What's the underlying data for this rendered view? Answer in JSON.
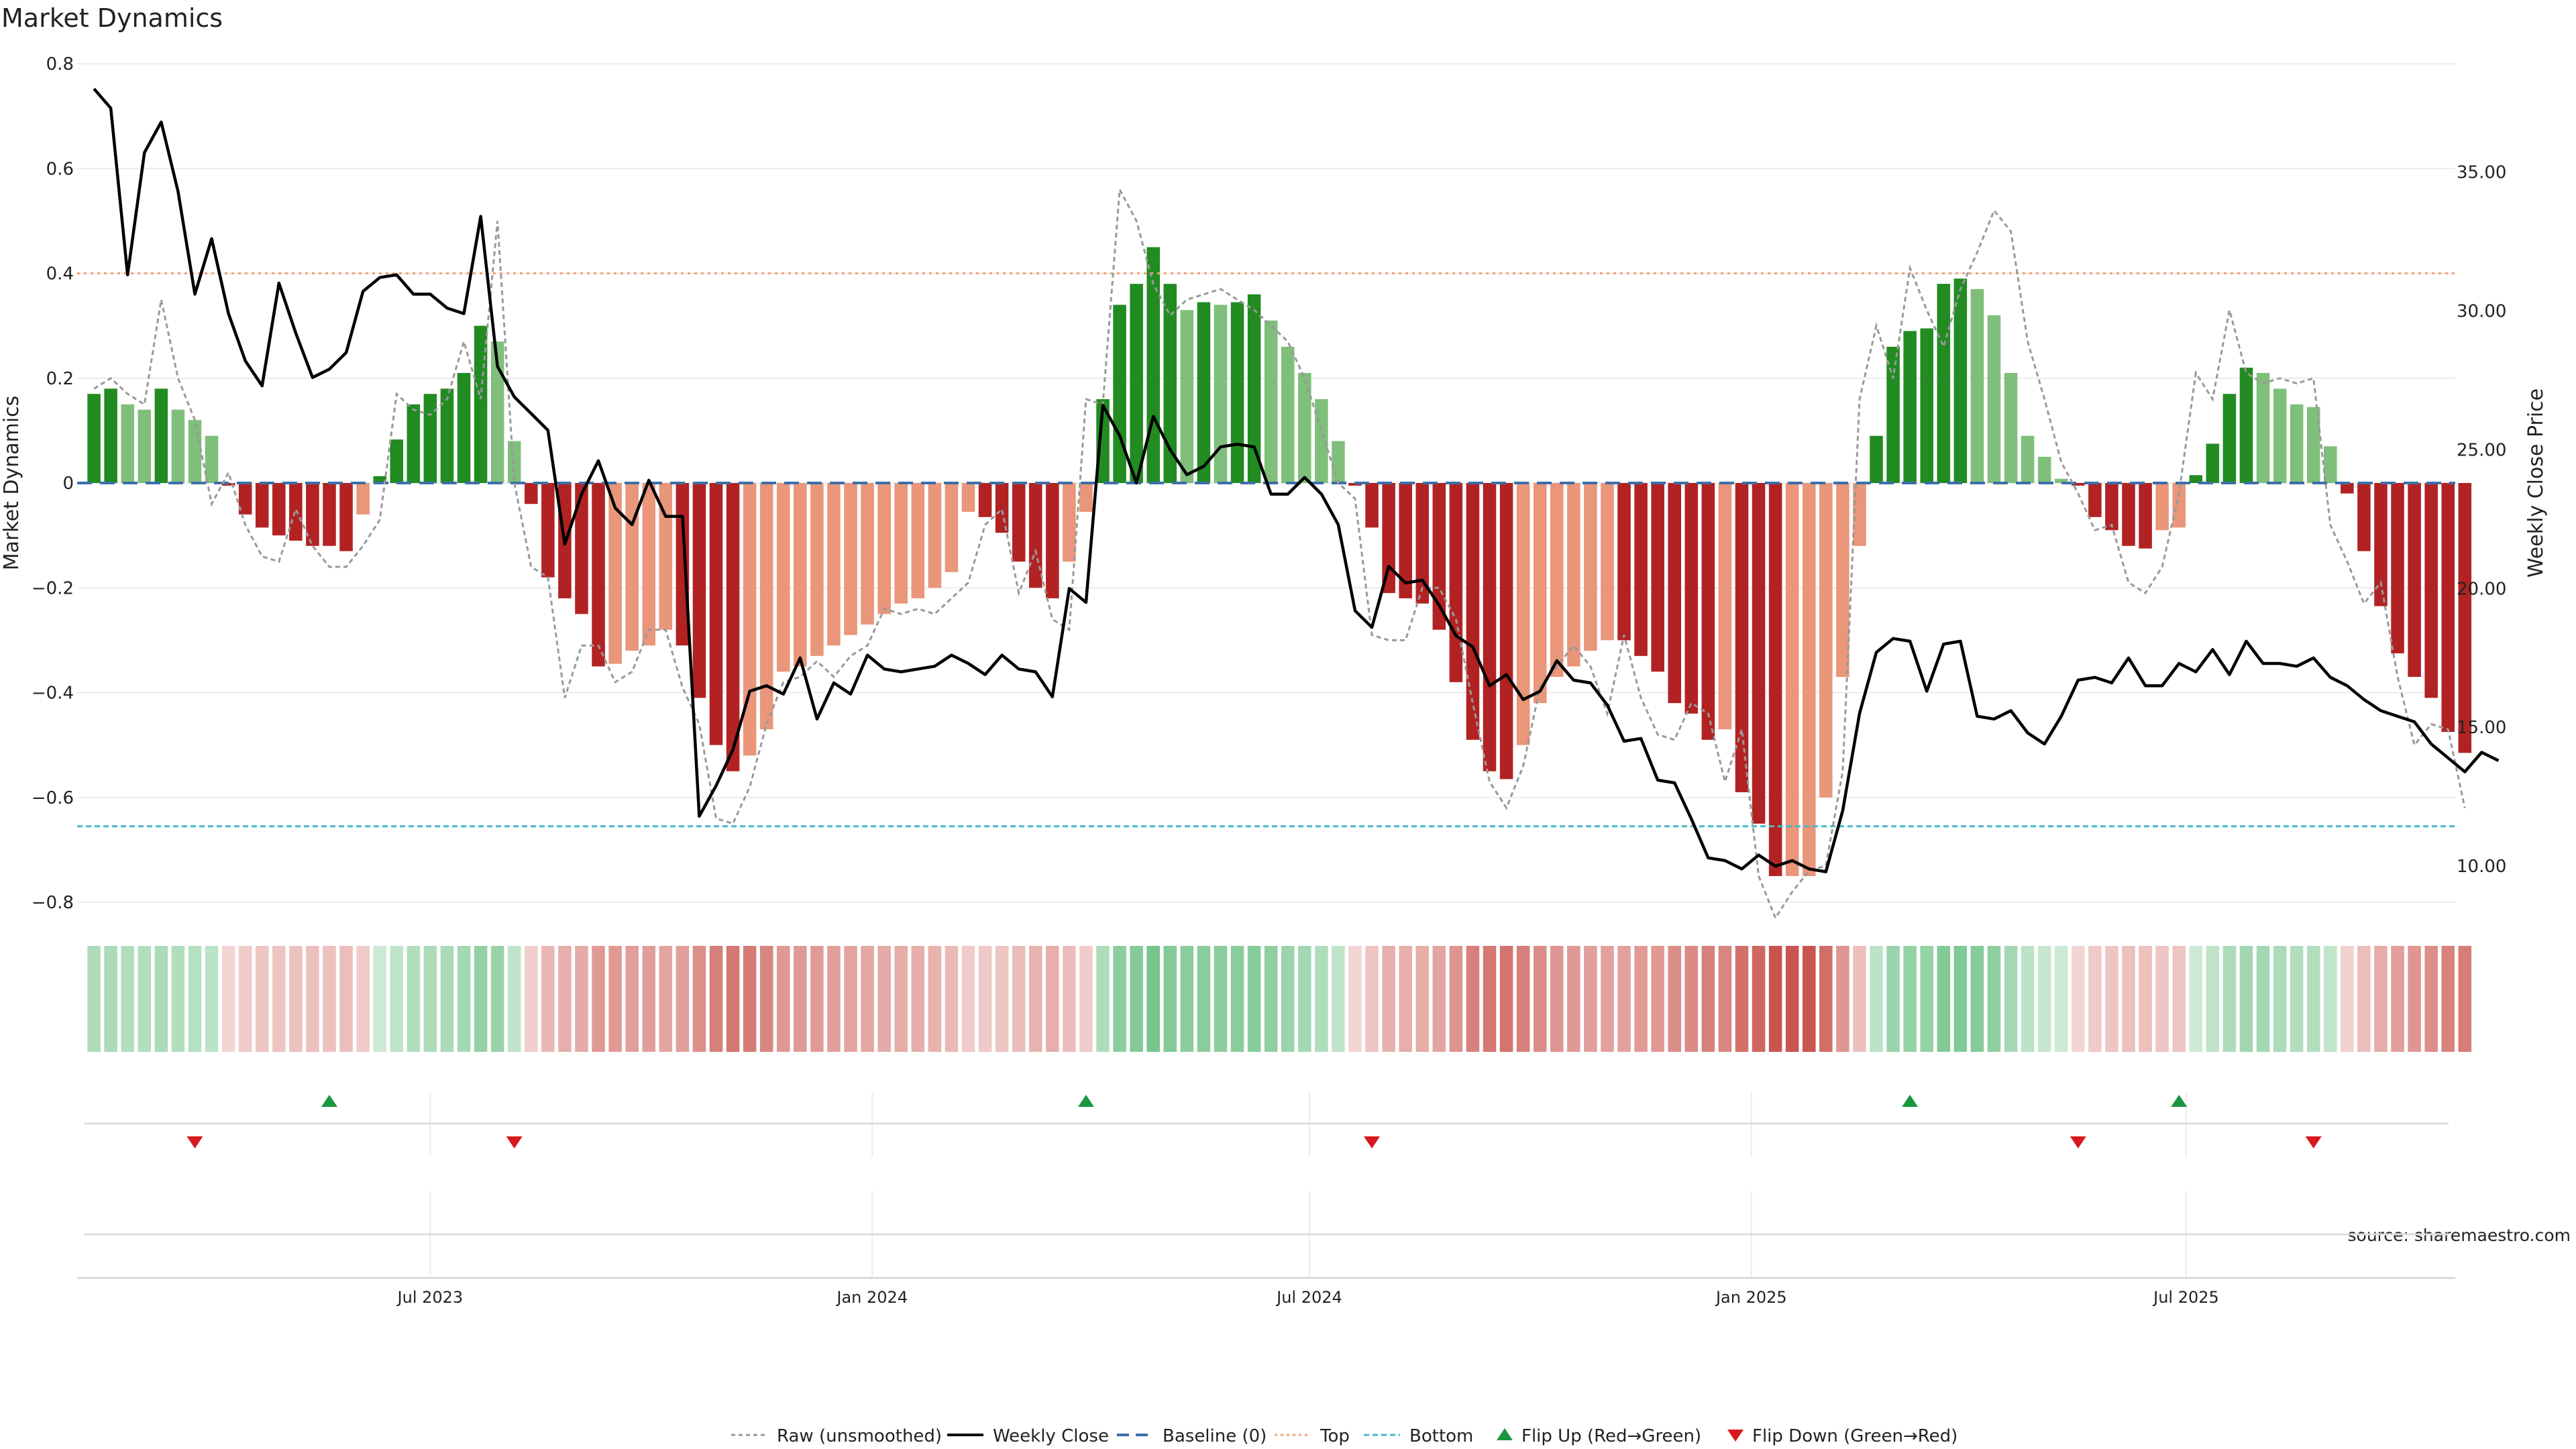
{
  "title": "Market Dynamics",
  "source": "source: sharemaestro.com",
  "chart_data": {
    "type": "bar",
    "left_axis": {
      "label": "Market Dynamics",
      "ylim": [
        -0.8,
        0.8
      ],
      "ticks": [
        0.8,
        0.6,
        0.4,
        0.2,
        0,
        -0.2,
        -0.4,
        -0.6,
        -0.8
      ],
      "tick_labels": [
        "0.8",
        "0.6",
        "0.4",
        "0.2",
        "0",
        "−0.2",
        "−0.4",
        "−0.6",
        "−0.8"
      ]
    },
    "right_axis": {
      "label": "Weekly Close Price",
      "ylim": [
        8.7,
        38.9
      ],
      "ticks": [
        35,
        30,
        25,
        20,
        15,
        10
      ],
      "tick_labels": [
        "35.00",
        "30.00",
        "25.00",
        "20.00",
        "15.00",
        "10.00"
      ]
    },
    "x_axis": {
      "x_start": "2023-02-04",
      "x_end": "2025-10-21",
      "tick_dates": [
        "2023-07-01",
        "2024-01-01",
        "2024-07-01",
        "2025-01-01",
        "2025-07-01"
      ],
      "tick_labels": [
        "Jul 2023",
        "Jan 2024",
        "Jul 2024",
        "Jan 2025",
        "Jul 2025"
      ]
    },
    "grid": true,
    "legend_position": "bottom-center",
    "thresholds": {
      "top": 0.4,
      "bottom": -0.655,
      "baseline": 0
    },
    "colors": {
      "green_strong": "#228b22",
      "green_light": "#7fbf7b",
      "red_strong": "#b22222",
      "red_light": "#e9967a",
      "raw": "#999999",
      "close": "#000000",
      "baseline": "#3d6fa8",
      "top": "#f0a070",
      "bottom": "#47b8cc",
      "flip_up": "#1a9641",
      "flip_down": "#d7191c"
    },
    "week_start": "2023-02-11",
    "bars": [
      0.17,
      0.18,
      0.15,
      0.14,
      0.18,
      0.14,
      0.12,
      0.09,
      -0.005,
      -0.06,
      -0.085,
      -0.1,
      -0.11,
      -0.12,
      -0.12,
      -0.13,
      -0.06,
      0.013,
      0.083,
      0.15,
      0.17,
      0.18,
      0.21,
      0.3,
      0.27,
      0.08,
      -0.04,
      -0.18,
      -0.22,
      -0.25,
      -0.35,
      -0.345,
      -0.32,
      -0.31,
      -0.28,
      -0.31,
      -0.41,
      -0.5,
      -0.55,
      -0.52,
      -0.47,
      -0.36,
      -0.35,
      -0.33,
      -0.31,
      -0.29,
      -0.27,
      -0.25,
      -0.23,
      -0.22,
      -0.2,
      -0.17,
      -0.055,
      -0.065,
      -0.095,
      -0.15,
      -0.2,
      -0.22,
      -0.15,
      -0.055,
      0.16,
      0.34,
      0.38,
      0.45,
      0.38,
      0.33,
      0.345,
      0.34,
      0.345,
      0.36,
      0.31,
      0.26,
      0.21,
      0.16,
      0.08,
      -0.005,
      -0.085,
      -0.21,
      -0.22,
      -0.23,
      -0.28,
      -0.38,
      -0.49,
      -0.55,
      -0.565,
      -0.5,
      -0.42,
      -0.37,
      -0.35,
      -0.32,
      -0.3,
      -0.3,
      -0.33,
      -0.36,
      -0.42,
      -0.44,
      -0.49,
      -0.47,
      -0.59,
      -0.65,
      -0.75,
      -0.75,
      -0.75,
      -0.6,
      -0.37,
      -0.12,
      0.09,
      0.26,
      0.29,
      0.295,
      0.38,
      0.39,
      0.37,
      0.32,
      0.21,
      0.09,
      0.05,
      0.008,
      -0.005,
      -0.065,
      -0.09,
      -0.12,
      -0.125,
      -0.09,
      -0.085,
      0.015,
      0.075,
      0.17,
      0.22,
      0.21,
      0.18,
      0.15,
      0.145,
      0.07,
      -0.02,
      -0.13,
      -0.235,
      -0.325,
      -0.37,
      -0.41,
      -0.475,
      -0.515
    ],
    "bar_color_classes": [
      "g",
      "g",
      "gl",
      "gl",
      "g",
      "gl",
      "gl",
      "gl",
      "r",
      "r",
      "r",
      "r",
      "r",
      "r",
      "r",
      "r",
      "rl",
      "g",
      "g",
      "g",
      "g",
      "g",
      "g",
      "g",
      "gl",
      "gl",
      "r",
      "r",
      "r",
      "r",
      "r",
      "rl",
      "rl",
      "rl",
      "rl",
      "r",
      "r",
      "r",
      "r",
      "rl",
      "rl",
      "rl",
      "rl",
      "rl",
      "rl",
      "rl",
      "rl",
      "rl",
      "rl",
      "rl",
      "rl",
      "rl",
      "rl",
      "r",
      "r",
      "r",
      "r",
      "r",
      "rl",
      "rl",
      "g",
      "g",
      "g",
      "g",
      "g",
      "gl",
      "g",
      "gl",
      "g",
      "g",
      "gl",
      "gl",
      "gl",
      "gl",
      "gl",
      "r",
      "r",
      "r",
      "r",
      "r",
      "r",
      "r",
      "r",
      "r",
      "r",
      "rl",
      "rl",
      "rl",
      "rl",
      "rl",
      "rl",
      "r",
      "r",
      "r",
      "r",
      "r",
      "r",
      "rl",
      "r",
      "r",
      "r",
      "rl",
      "rl",
      "rl",
      "rl",
      "rl",
      "g",
      "g",
      "g",
      "g",
      "g",
      "g",
      "gl",
      "gl",
      "gl",
      "gl",
      "gl",
      "gl",
      "r",
      "r",
      "r",
      "r",
      "r",
      "rl",
      "rl",
      "g",
      "g",
      "g",
      "g",
      "gl",
      "gl",
      "gl",
      "gl",
      "gl",
      "r",
      "r",
      "r",
      "r",
      "r",
      "r",
      "r",
      "r"
    ],
    "weekly_close": [
      38.0,
      37.3,
      31.3,
      35.7,
      36.8,
      34.3,
      30.6,
      32.6,
      29.9,
      28.2,
      27.3,
      31.0,
      29.2,
      27.6,
      27.9,
      28.5,
      30.7,
      31.2,
      31.3,
      30.6,
      30.6,
      30.1,
      29.9,
      33.4,
      28.0,
      26.9,
      26.3,
      25.7,
      21.6,
      23.4,
      24.6,
      22.9,
      22.3,
      23.9,
      22.6,
      22.6,
      11.8,
      12.9,
      14.2,
      16.3,
      16.5,
      16.2,
      17.5,
      15.3,
      16.6,
      16.2,
      17.6,
      17.1,
      17.0,
      17.1,
      17.2,
      17.6,
      17.3,
      16.9,
      17.6,
      17.1,
      17.0,
      16.1,
      20.0,
      19.5,
      26.6,
      25.5,
      23.8,
      26.2,
      25.0,
      24.1,
      24.4,
      25.1,
      25.2,
      25.1,
      23.4,
      23.4,
      24.0,
      23.4,
      22.3,
      19.2,
      18.6,
      20.8,
      20.2,
      20.3,
      19.4,
      18.3,
      17.9,
      16.5,
      16.9,
      16.0,
      16.3,
      17.4,
      16.7,
      16.6,
      15.8,
      14.5,
      14.6,
      13.1,
      13.0,
      11.7,
      10.3,
      10.2,
      9.9,
      10.4,
      10.0,
      10.2,
      9.9,
      9.8,
      12.0,
      15.5,
      17.7,
      18.2,
      18.1,
      16.3,
      18.0,
      18.1,
      15.4,
      15.3,
      15.6,
      14.8,
      14.4,
      15.4,
      16.7,
      16.8,
      16.6,
      17.5,
      16.5,
      16.5,
      17.3,
      17.0,
      17.8,
      16.9,
      18.1,
      17.3,
      17.3,
      17.2,
      17.5,
      16.8,
      16.5,
      16.0,
      15.6,
      15.4,
      15.2,
      14.4,
      13.9,
      13.4,
      14.1,
      13.8
    ],
    "raw": [
      0.18,
      0.2,
      0.17,
      0.15,
      0.35,
      0.2,
      0.12,
      -0.04,
      0.02,
      -0.08,
      -0.14,
      -0.15,
      -0.05,
      -0.12,
      -0.16,
      -0.16,
      -0.12,
      -0.07,
      0.17,
      0.14,
      0.13,
      0.16,
      0.27,
      0.16,
      0.5,
      0.0,
      -0.16,
      -0.18,
      -0.41,
      -0.31,
      -0.31,
      -0.38,
      -0.36,
      -0.28,
      -0.28,
      -0.39,
      -0.46,
      -0.64,
      -0.65,
      -0.58,
      -0.46,
      -0.38,
      -0.37,
      -0.34,
      -0.37,
      -0.33,
      -0.31,
      -0.24,
      -0.25,
      -0.24,
      -0.25,
      -0.22,
      -0.19,
      -0.08,
      -0.05,
      -0.21,
      -0.13,
      -0.26,
      -0.28,
      0.16,
      0.15,
      0.56,
      0.5,
      0.38,
      0.32,
      0.35,
      0.36,
      0.37,
      0.35,
      0.33,
      0.3,
      0.27,
      0.2,
      0.1,
      0.0,
      -0.03,
      -0.29,
      -0.3,
      -0.3,
      -0.2,
      -0.2,
      -0.26,
      -0.42,
      -0.57,
      -0.62,
      -0.54,
      -0.39,
      -0.35,
      -0.31,
      -0.35,
      -0.44,
      -0.29,
      -0.41,
      -0.48,
      -0.49,
      -0.42,
      -0.44,
      -0.57,
      -0.47,
      -0.75,
      -0.83,
      -0.78,
      -0.74,
      -0.73,
      -0.55,
      0.16,
      0.3,
      0.2,
      0.41,
      0.33,
      0.26,
      0.37,
      0.44,
      0.52,
      0.48,
      0.27,
      0.16,
      0.04,
      -0.02,
      -0.09,
      -0.08,
      -0.19,
      -0.21,
      -0.16,
      -0.02,
      0.21,
      0.16,
      0.33,
      0.21,
      0.19,
      0.2,
      0.19,
      0.2,
      -0.08,
      -0.15,
      -0.23,
      -0.19,
      -0.37,
      -0.5,
      -0.46,
      -0.47,
      -0.62
    ],
    "flip_up_dates": [
      "2023-05-20",
      "2024-03-30",
      "2025-03-08",
      "2025-06-28"
    ],
    "flip_down_dates": [
      "2023-03-25",
      "2023-08-05",
      "2024-07-27",
      "2025-05-17",
      "2025-08-23"
    ],
    "legend": [
      "Raw (unsmoothed)",
      "Weekly Close",
      "Baseline (0)",
      "Top",
      "Bottom",
      "Flip Up (Red→Green)",
      "Flip Down (Green→Red)"
    ]
  }
}
